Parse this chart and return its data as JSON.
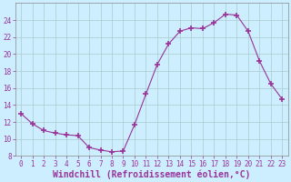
{
  "x": [
    0,
    1,
    2,
    3,
    4,
    5,
    6,
    7,
    8,
    9,
    10,
    11,
    12,
    13,
    14,
    15,
    16,
    17,
    18,
    19,
    20,
    21,
    22,
    23
  ],
  "y": [
    13,
    11.8,
    11,
    10.7,
    10.5,
    10.4,
    9.0,
    8.7,
    8.5,
    8.6,
    11.7,
    15.3,
    18.8,
    21.2,
    22.7,
    23.1,
    23.0,
    23.7,
    24.7,
    24.6,
    22.7,
    19.2,
    16.5,
    14.7
  ],
  "line_color": "#993399",
  "marker": "+",
  "marker_size": 4,
  "bg_color": "#cceeff",
  "grid_color": "#aacccc",
  "xlabel": "Windchill (Refroidissement éolien,°C)",
  "ylim": [
    8,
    26
  ],
  "xlim": [
    -0.5,
    23.5
  ],
  "yticks": [
    8,
    10,
    12,
    14,
    16,
    18,
    20,
    22,
    24
  ],
  "xticks": [
    0,
    1,
    2,
    3,
    4,
    5,
    6,
    7,
    8,
    9,
    10,
    11,
    12,
    13,
    14,
    15,
    16,
    17,
    18,
    19,
    20,
    21,
    22,
    23
  ],
  "tick_fontsize": 5.5,
  "label_fontsize": 7.0
}
